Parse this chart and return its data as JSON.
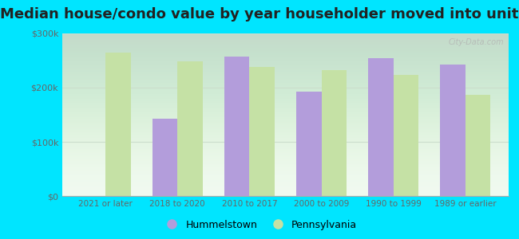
{
  "title": "Median house/condo value by year householder moved into unit",
  "categories": [
    "2021 or later",
    "2018 to 2020",
    "2010 to 2017",
    "2000 to 2009",
    "1990 to 1999",
    "1989 or earlier"
  ],
  "hummelstown": [
    null,
    143000,
    258000,
    193000,
    255000,
    243000
  ],
  "pennsylvania": [
    265000,
    248000,
    238000,
    233000,
    223000,
    187000
  ],
  "bar_color_hummelstown": "#b39ddb",
  "bar_color_pennsylvania": "#c5e1a5",
  "background_outer": "#00e5ff",
  "background_inner_top": "#e8f5e9",
  "background_inner_bottom": "#f9fff9",
  "ylim": [
    0,
    300000
  ],
  "yticks": [
    0,
    100000,
    200000,
    300000
  ],
  "ytick_labels": [
    "$0",
    "$100k",
    "$200k",
    "$300k"
  ],
  "legend_hummelstown": "Hummelstown",
  "legend_pennsylvania": "Pennsylvania",
  "title_fontsize": 13,
  "bar_width": 0.35,
  "watermark": "City-Data.com"
}
